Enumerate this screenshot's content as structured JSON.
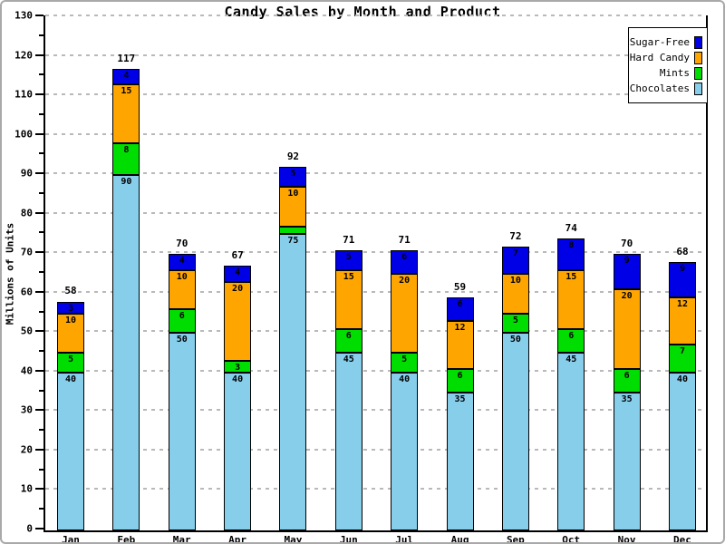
{
  "window": {
    "background": "#ffffff",
    "frame_color": "#a9a9a9"
  },
  "chart_data": {
    "type": "bar",
    "stacked": true,
    "title": "Candy Sales by Month and Product",
    "ylabel": "Millions of Units",
    "xlabel": "",
    "categories": [
      "Jan",
      "Feb",
      "Mar",
      "Apr",
      "May",
      "Jun",
      "Jul",
      "Aug",
      "Sep",
      "Oct",
      "Nov",
      "Dec"
    ],
    "series": [
      {
        "name": "Chocolates",
        "color": "#87CEEB",
        "values": [
          40,
          90,
          50,
          40,
          75,
          45,
          40,
          35,
          50,
          45,
          35,
          40
        ]
      },
      {
        "name": "Mints",
        "color": "#00DD00",
        "values": [
          5,
          8,
          6,
          3,
          2,
          6,
          5,
          6,
          5,
          6,
          6,
          7
        ]
      },
      {
        "name": "Hard Candy",
        "color": "#FFA500",
        "values": [
          10,
          15,
          10,
          20,
          10,
          15,
          20,
          12,
          10,
          15,
          20,
          12
        ]
      },
      {
        "name": "Sugar-Free",
        "color": "#0000E6",
        "values": [
          3,
          4,
          4,
          4,
          5,
          5,
          6,
          6,
          7,
          8,
          9,
          9
        ]
      }
    ],
    "totals": [
      58,
      117,
      70,
      67,
      92,
      71,
      71,
      59,
      72,
      74,
      70,
      68
    ],
    "ylim": [
      0,
      130
    ],
    "ytick_step": 10,
    "yminor_step": 5,
    "grid": "horizontal-dashed",
    "grid_color": "#b9b9b9",
    "legend": {
      "position": "top-right",
      "entries": [
        {
          "label": "Sugar-Free",
          "color": "#0000E6"
        },
        {
          "label": "Hard Candy",
          "color": "#FFA500"
        },
        {
          "label": "Mints",
          "color": "#00DD00"
        },
        {
          "label": "Chocolates",
          "color": "#87CEEB"
        }
      ]
    }
  }
}
